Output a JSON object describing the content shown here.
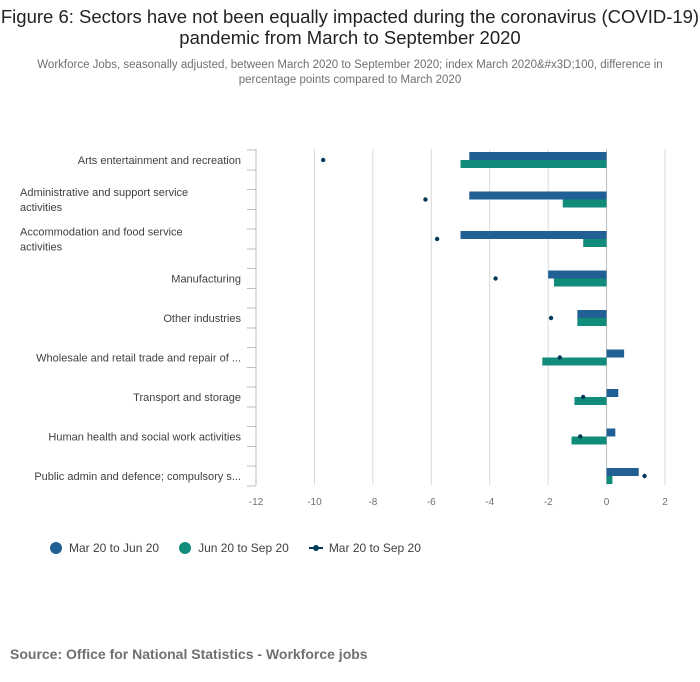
{
  "header": {
    "title": "Figure 6: Sectors have not been equally impacted during the coronavirus (COVID-19) pandemic from March to September 2020",
    "subtitle": "Workforce Jobs, seasonally adjusted, between March 2020 to September 2020; index March 2020&#x3D;100, difference in percentage points compared to March 2020"
  },
  "colors": {
    "series1": "#206095",
    "series2": "#118C7B",
    "series3": "#003C57",
    "grid": "#d9d9d9",
    "axis": "#bebebe"
  },
  "chart_data": {
    "type": "bar",
    "orientation": "horizontal",
    "title": "Figure 6: Sectors have not been equally impacted during the coronavirus (COVID-19) pandemic from March to September 2020",
    "xlabel": "",
    "ylabel": "",
    "xlim": [
      -12,
      2
    ],
    "ticks": [
      -12,
      -10,
      -8,
      -6,
      -4,
      -2,
      0,
      2
    ],
    "tick_labels": [
      "-12",
      "-10",
      "-8",
      "-6",
      "-4",
      "-2",
      "0",
      "2"
    ],
    "grid": true,
    "legend_position": "bottom-left",
    "categories": [
      "Arts entertainment and recreation",
      "Administrative and support service activities",
      "Accommodation and food service activities",
      "Manufacturing",
      "Other industries",
      "Wholesale and retail trade and repair of ...",
      "Transport and storage",
      "Human health and social work activities",
      "Public admin and defence; compulsory s..."
    ],
    "category_lines": [
      [
        "Arts entertainment and recreation"
      ],
      [
        "Administrative and support service",
        "activities"
      ],
      [
        "Accommodation and food service",
        "activities"
      ],
      [
        "Manufacturing"
      ],
      [
        "Other industries"
      ],
      [
        "Wholesale and retail trade and repair of ..."
      ],
      [
        "Transport and storage"
      ],
      [
        "Human health and social work activities"
      ],
      [
        "Public admin and defence; compulsory s..."
      ]
    ],
    "series": [
      {
        "name": "Mar 20 to Jun 20",
        "kind": "bar",
        "values": [
          -4.7,
          -4.7,
          -5.0,
          -2.0,
          -1.0,
          0.6,
          0.4,
          0.3,
          1.1
        ]
      },
      {
        "name": "Jun 20 to Sep 20",
        "kind": "bar",
        "values": [
          -5.0,
          -1.5,
          -0.8,
          -1.8,
          -1.0,
          -2.2,
          -1.1,
          -1.2,
          0.2
        ]
      },
      {
        "name": "Mar 20 to Sep 20",
        "kind": "point",
        "values": [
          -9.7,
          -6.2,
          -5.8,
          -3.8,
          -1.9,
          -1.6,
          -0.8,
          -0.9,
          1.3
        ]
      }
    ]
  },
  "source": {
    "text": "Source: Office for National Statistics - Workforce jobs"
  }
}
